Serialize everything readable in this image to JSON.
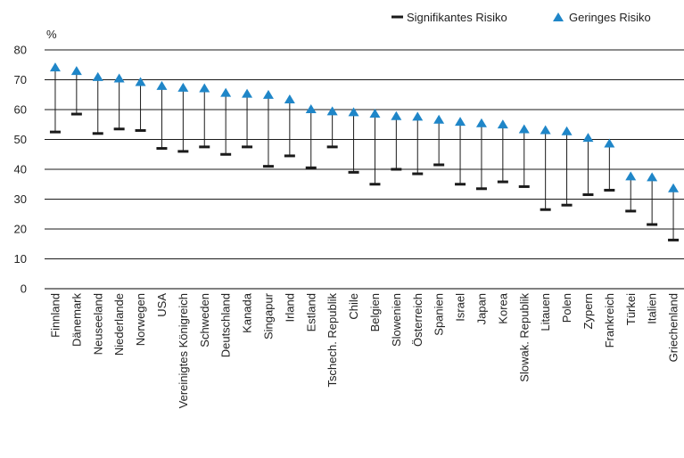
{
  "chart_data": {
    "type": "scatter",
    "unit_label": "%",
    "ylim": [
      0,
      80
    ],
    "yticks": [
      0,
      10,
      20,
      30,
      40,
      50,
      60,
      70,
      80
    ],
    "grid": true,
    "legend_position": "top-right",
    "categories": [
      "Finnland",
      "Dänemark",
      "Neuseeland",
      "Niederlande",
      "Norwegen",
      "USA",
      "Vereinigtes Königreich",
      "Schweden",
      "Deutschland",
      "Kanada",
      "Singapur",
      "Irland",
      "Estland",
      "Tschech. Republik",
      "Chile",
      "Belgien",
      "Slowenien",
      "Österreich",
      "Spanien",
      "Israel",
      "Japan",
      "Korea",
      "Slowak. Republik",
      "Litauen",
      "Polen",
      "Zypern",
      "Frankreich",
      "Türkei",
      "Italien",
      "Griechenland"
    ],
    "series": [
      {
        "name": "Signifikantes Risiko",
        "marker": "dash",
        "color": "#1a1a1a",
        "values": [
          52.5,
          58.5,
          52,
          53.5,
          53,
          47,
          46,
          47.5,
          45,
          47.5,
          41,
          44.5,
          40.5,
          47.5,
          39,
          35,
          40,
          38.5,
          41.5,
          35,
          33.5,
          35.8,
          34.2,
          26.5,
          28,
          31.5,
          33,
          26,
          21.5,
          16.3
        ]
      },
      {
        "name": "Geringes Risiko",
        "marker": "triangle",
        "color": "#1f86c8",
        "values": [
          74,
          72.8,
          70.8,
          70.3,
          69.1,
          67.8,
          67.2,
          67,
          65.5,
          65.2,
          64.8,
          63.3,
          60,
          59.3,
          59,
          58.5,
          57.7,
          57.5,
          56.5,
          55.8,
          55.3,
          54.9,
          53.3,
          53,
          52.6,
          50.4,
          48.5,
          37.5,
          37.2,
          33.5
        ]
      }
    ]
  }
}
